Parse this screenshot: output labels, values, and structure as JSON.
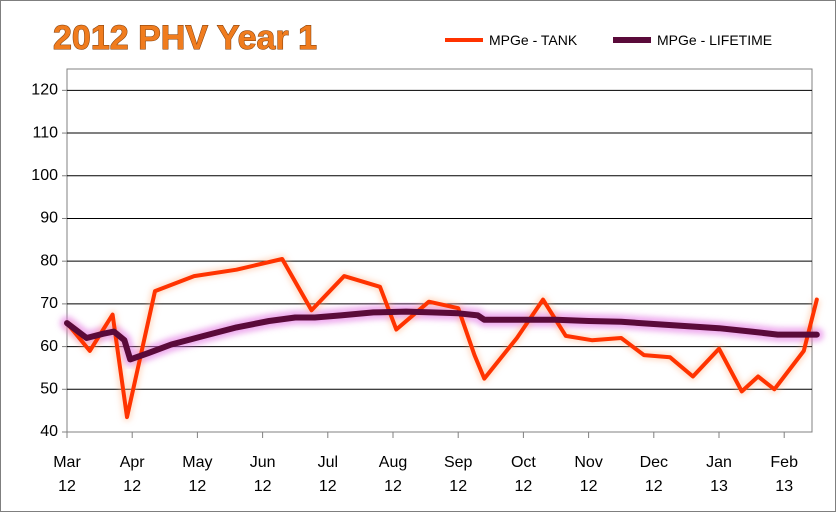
{
  "chart_data": {
    "type": "line",
    "title": "2012 PHV  Year 1",
    "xlabel": "",
    "ylabel": "",
    "ylim": [
      40,
      125
    ],
    "yticks": [
      40,
      50,
      60,
      70,
      80,
      90,
      100,
      110,
      120
    ],
    "grid": true,
    "legend_position": "top-right",
    "categories": [
      {
        "month": "Mar",
        "year": "12"
      },
      {
        "month": "Apr",
        "year": "12"
      },
      {
        "month": "May",
        "year": "12"
      },
      {
        "month": "Jun",
        "year": "12"
      },
      {
        "month": "Jul",
        "year": "12"
      },
      {
        "month": "Aug",
        "year": "12"
      },
      {
        "month": "Sep",
        "year": "12"
      },
      {
        "month": "Oct",
        "year": "12"
      },
      {
        "month": "Nov",
        "year": "12"
      },
      {
        "month": "Dec",
        "year": "12"
      },
      {
        "month": "Jan",
        "year": "13"
      },
      {
        "month": "Feb",
        "year": "13"
      }
    ],
    "x_unit": "months since start of Mar 12",
    "series": [
      {
        "name": "MPGe - TANK",
        "color": "#ff3300",
        "points": [
          [
            0.0,
            65.5
          ],
          [
            0.35,
            59.0
          ],
          [
            0.7,
            67.5
          ],
          [
            0.92,
            43.5
          ],
          [
            1.35,
            73.0
          ],
          [
            1.95,
            76.5
          ],
          [
            2.6,
            78.0
          ],
          [
            3.3,
            80.5
          ],
          [
            3.75,
            68.5
          ],
          [
            4.25,
            76.5
          ],
          [
            4.8,
            74.0
          ],
          [
            5.05,
            64.0
          ],
          [
            5.55,
            70.5
          ],
          [
            6.0,
            69.0
          ],
          [
            6.25,
            58.0
          ],
          [
            6.4,
            52.5
          ],
          [
            6.9,
            62.0
          ],
          [
            7.3,
            71.0
          ],
          [
            7.65,
            62.5
          ],
          [
            8.05,
            61.5
          ],
          [
            8.5,
            62.0
          ],
          [
            8.85,
            58.0
          ],
          [
            9.25,
            57.5
          ],
          [
            9.6,
            53.0
          ],
          [
            10.0,
            59.5
          ],
          [
            10.35,
            49.5
          ],
          [
            10.6,
            53.0
          ],
          [
            10.85,
            50.0
          ],
          [
            11.3,
            59.0
          ],
          [
            11.5,
            71.0
          ]
        ]
      },
      {
        "name": "MPGe - LIFETIME",
        "color": "#5a0a3a",
        "points": [
          [
            0.0,
            65.5
          ],
          [
            0.3,
            62.0
          ],
          [
            0.55,
            63.0
          ],
          [
            0.72,
            63.5
          ],
          [
            0.88,
            61.5
          ],
          [
            0.97,
            57.0
          ],
          [
            1.25,
            58.5
          ],
          [
            1.6,
            60.5
          ],
          [
            2.1,
            62.5
          ],
          [
            2.6,
            64.5
          ],
          [
            3.1,
            66.0
          ],
          [
            3.5,
            66.8
          ],
          [
            3.8,
            66.8
          ],
          [
            4.2,
            67.3
          ],
          [
            4.7,
            68.0
          ],
          [
            5.2,
            68.2
          ],
          [
            5.6,
            68.0
          ],
          [
            6.0,
            67.8
          ],
          [
            6.3,
            67.3
          ],
          [
            6.4,
            66.3
          ],
          [
            7.0,
            66.3
          ],
          [
            7.5,
            66.3
          ],
          [
            8.0,
            66.0
          ],
          [
            8.5,
            65.8
          ],
          [
            9.0,
            65.3
          ],
          [
            9.5,
            64.8
          ],
          [
            10.0,
            64.3
          ],
          [
            10.5,
            63.5
          ],
          [
            10.9,
            62.8
          ],
          [
            11.5,
            62.8
          ]
        ]
      }
    ]
  }
}
